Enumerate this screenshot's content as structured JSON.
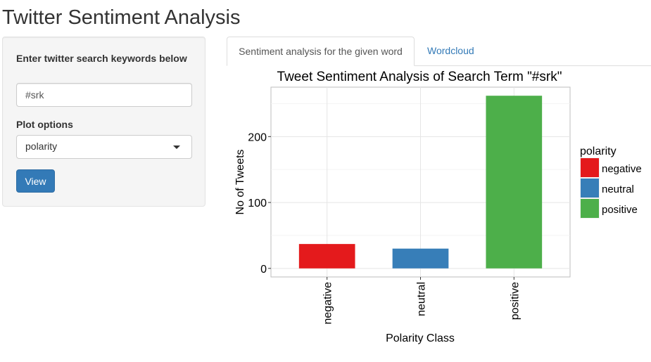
{
  "app": {
    "title": "Twitter Sentiment Analysis"
  },
  "sidebar": {
    "search_label": "Enter twitter search keywords below",
    "search_value": "#srk",
    "plot_label": "Plot options",
    "plot_selected": "polarity",
    "view_label": "View"
  },
  "tabs": [
    {
      "label": "Sentiment analysis for the given word",
      "active": true
    },
    {
      "label": "Wordcloud",
      "active": false
    }
  ],
  "colors": {
    "accent": "#337ab7",
    "negative": "#e41a1c",
    "neutral": "#377eb8",
    "positive": "#4daf4a"
  },
  "chart_data": {
    "type": "bar",
    "title": "Tweet Sentiment Analysis of Search Term \"#srk\"",
    "xlabel": "Polarity Class",
    "ylabel": "No of Tweets",
    "categories": [
      "negative",
      "neutral",
      "positive"
    ],
    "values": [
      37,
      30,
      262
    ],
    "colors": [
      "#e41a1c",
      "#377eb8",
      "#4daf4a"
    ],
    "ylim": [
      -13,
      275
    ],
    "yticks": [
      0,
      100,
      200
    ],
    "grid": true,
    "legend": {
      "title": "polarity",
      "position": "right",
      "entries": [
        "negative",
        "neutral",
        "positive"
      ]
    }
  }
}
